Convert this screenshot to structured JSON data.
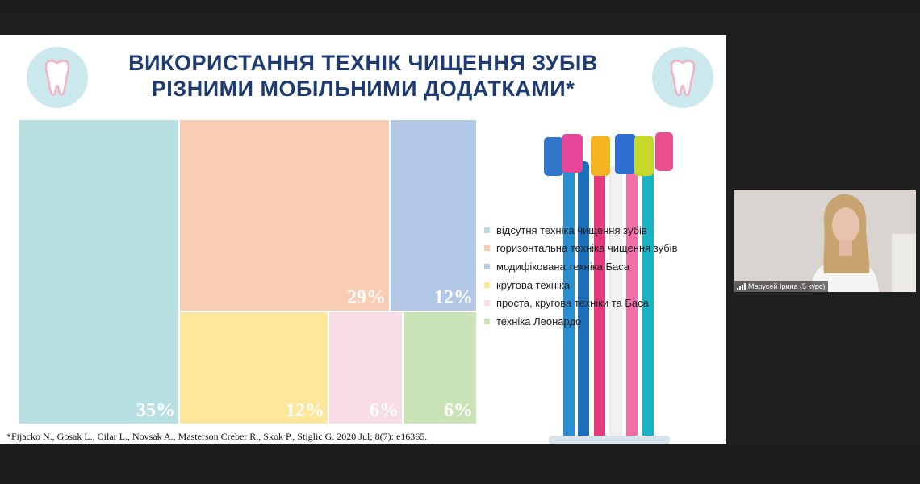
{
  "slide": {
    "title_line1": "ВИКОРИСТАННЯ ТЕХНІК ЧИЩЕННЯ ЗУБІВ",
    "title_line2": "РІЗНИМИ МОБІЛЬНИМИ ДОДАТКАМИ*",
    "citation": "*Fijacko N., Gosak L., Cilar L., Novsak A., Masterson Creber R., Skok P., Stiglic G. 2020 Jul; 8(7): e16365.",
    "title_color": "#1f3b73",
    "icons": [
      "tooth-icon",
      "tooth-icon"
    ],
    "image": "toothbrushes-photo"
  },
  "chart_data": {
    "type": "treemap",
    "values_percent": [
      35,
      29,
      12,
      12,
      6,
      6
    ],
    "data_labels": [
      "35%",
      "29%",
      "12%",
      "12%",
      "6%",
      "6%"
    ],
    "legend": [
      {
        "label": "відсутня техніка чищення зубів",
        "color": "#b8dfe1"
      },
      {
        "label": "горизонтальна техніка чищення зубів",
        "color": "#f8cdb4"
      },
      {
        "label": "модифікована техніка Баса",
        "color": "#b3c7e6"
      },
      {
        "label": "кругова техніка",
        "color": "#fde79b"
      },
      {
        "label": "проста, кругова техніки та Баса",
        "color": "#f8dde6"
      },
      {
        "label": "техніка Леонардо",
        "color": "#c9e3b6"
      }
    ],
    "legend_placement": "right"
  },
  "participant": {
    "name": "Марусей Ірина (5 курс)"
  }
}
